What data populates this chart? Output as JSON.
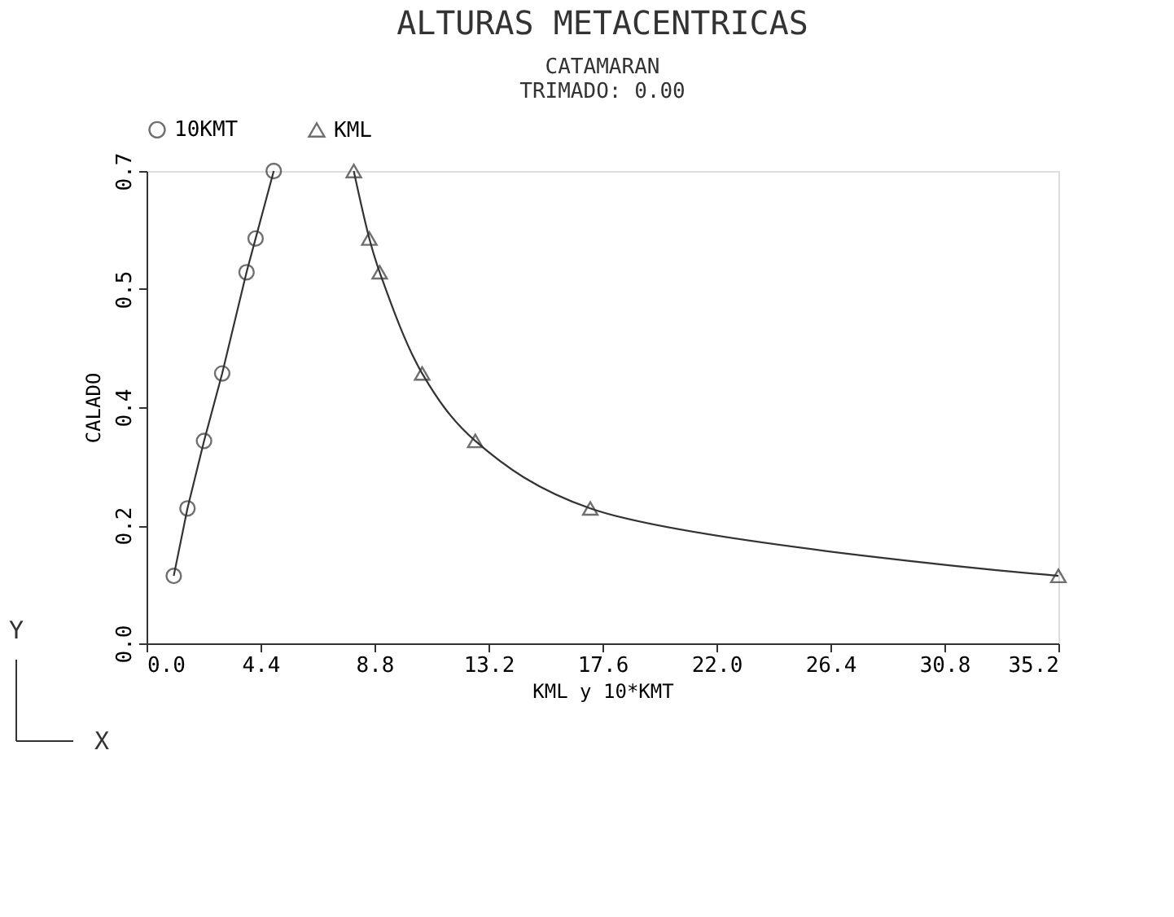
{
  "chart_data": {
    "type": "line",
    "title": "ALTURAS METACENTRICAS",
    "subtitle": "CATAMARAN",
    "annotations": [
      "TRIMADO: 0.00",
      "Y",
      "X"
    ],
    "xlabel": "KML y 10*KMT",
    "ylabel": "CALADO",
    "series": [
      {
        "name": "10KMT",
        "color": "#333333",
        "marker": "circle",
        "line_style": "solid",
        "x": [
          1.05,
          1.58,
          2.22,
          2.92,
          3.86,
          4.21,
          4.91
        ],
        "values": [
          0.1,
          0.2,
          0.3,
          0.4,
          0.55,
          0.6,
          0.7
        ]
      },
      {
        "name": "KML",
        "color": "#333333",
        "marker": "triangle",
        "line_style": "solid",
        "x": [
          8.0,
          8.6,
          9.0,
          10.64,
          12.69,
          17.13,
          35.2
        ],
        "values": [
          0.7,
          0.6,
          0.55,
          0.4,
          0.3,
          0.2,
          0.1
        ]
      }
    ],
    "xlim": [
      0,
      35.2
    ],
    "xticks": [
      {
        "value": 0,
        "label": "0.0"
      },
      4.4,
      8.8,
      13.2,
      17.6,
      {
        "value": 22,
        "label": "22.0"
      },
      26.4,
      30.8,
      35.2
    ],
    "ylim": [
      0,
      0.7
    ],
    "yticks": [
      {
        "value": 0,
        "label": "0.0"
      },
      {
        "value": 0.175,
        "label": "0.2"
      },
      {
        "value": 0.35,
        "label": "0.4"
      },
      {
        "value": 0.525,
        "label": "0.5"
      },
      0.7
    ],
    "grid": false,
    "legend": "top"
  }
}
